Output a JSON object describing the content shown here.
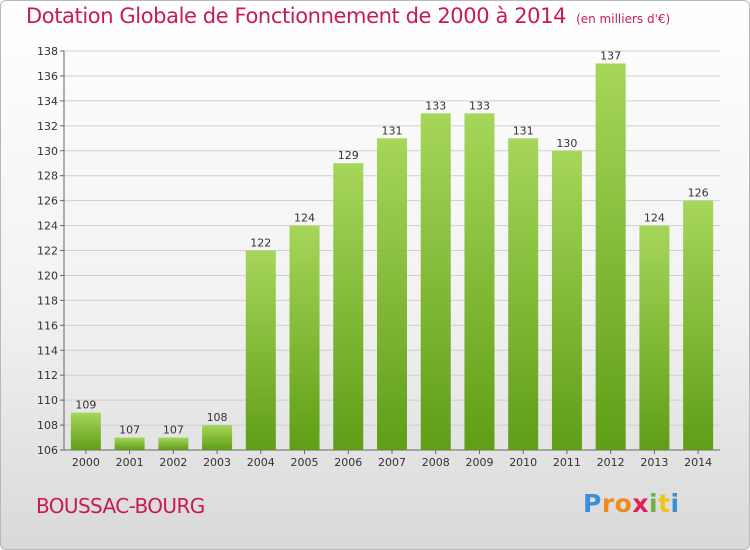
{
  "header": {
    "title": "Dotation Globale de Fonctionnement de 2000 à 2014",
    "unit": "(en milliers d'€)"
  },
  "footer": {
    "commune": "BOUSSAC-BOURG",
    "logo_letters": [
      "P",
      "r",
      "o",
      "x",
      "i",
      "t",
      "i"
    ],
    "logo_colors": [
      "#3a8fd8",
      "#f08a1d",
      "#f08a1d",
      "#e01e5a",
      "#6cb33e",
      "#f0c419",
      "#3a8fd8"
    ]
  },
  "chart_data": {
    "type": "bar",
    "title": "Dotation Globale de Fonctionnement de 2000 à 2014",
    "xlabel": "",
    "ylabel": "",
    "categories": [
      "2000",
      "2001",
      "2002",
      "2003",
      "2004",
      "2005",
      "2006",
      "2007",
      "2008",
      "2009",
      "2010",
      "2011",
      "2012",
      "2013",
      "2014"
    ],
    "values": [
      109,
      107,
      107,
      108,
      122,
      124,
      129,
      131,
      133,
      133,
      131,
      130,
      137,
      124,
      126
    ],
    "ylim": [
      106,
      138
    ],
    "yticks": [
      "106",
      "108",
      "110",
      "112",
      "114",
      "116",
      "118",
      "120",
      "122",
      "124",
      "126",
      "128",
      "130",
      "132",
      "134",
      "136",
      "138"
    ],
    "grid": true,
    "bar_color": "#7fbf2e",
    "grid_color": "#cfcfcf"
  }
}
